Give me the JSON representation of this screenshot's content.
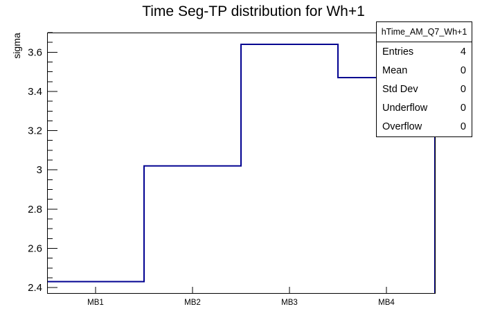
{
  "title": "Time Seg-TP distribution for Wh+1",
  "chart_data": {
    "type": "line",
    "draw_style": "root-step-histogram",
    "title": "Time Seg-TP distribution for Wh+1",
    "xlabel": "",
    "ylabel": "sigma",
    "categories": [
      "MB1",
      "MB2",
      "MB3",
      "MB4"
    ],
    "values": [
      2.43,
      3.02,
      3.64,
      3.47
    ],
    "series_name": "hTime_AM_Q7_Wh+1",
    "ylim": [
      2.372,
      3.7
    ],
    "y_major_ticks": [
      2.4,
      2.6,
      2.8,
      3,
      3.2,
      3.4,
      3.6
    ],
    "y_minor_tick_step": 0.05,
    "line_color": "#000090",
    "frame_color": "#000000",
    "background": "#ffffff",
    "grid": false,
    "legend_position": "none"
  },
  "stats_box": {
    "header": "hTime_AM_Q7_Wh+1",
    "rows": [
      {
        "label": "Entries",
        "value": "4"
      },
      {
        "label": "Mean",
        "value": "0"
      },
      {
        "label": "Std Dev",
        "value": "0"
      },
      {
        "label": "Underflow",
        "value": "0"
      },
      {
        "label": "Overflow",
        "value": "0"
      }
    ]
  }
}
